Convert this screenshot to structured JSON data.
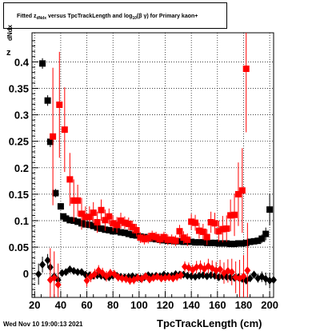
{
  "chart_data": {
    "type": "scatter",
    "title": "Fitted z_dNdx versus TpcTrackLength and log10(βγ) for Primary kaon+",
    "title_parts": {
      "lead": "Fitted  z",
      "lead_sub": "dNdx",
      "mid": "  versus TpcTrackLength and log",
      "log_sub": "10",
      "tail": "(β γ) for Primary kaon+"
    },
    "xlabel": "TpcTrackLength (cm)",
    "ylabel": "z",
    "ylabel_sub": "dNdx",
    "xlim": [
      18,
      203
    ],
    "ylim": [
      -0.045,
      0.455
    ],
    "xticks": [
      20,
      40,
      60,
      80,
      100,
      120,
      140,
      160,
      180,
      200
    ],
    "yticks": [
      0,
      0.05,
      0.1,
      0.15,
      0.2,
      0.25,
      0.3,
      0.35,
      0.4
    ],
    "ytick_labels": [
      "0",
      "0.05",
      "0.1",
      "0.15",
      "0.2",
      "0.25",
      "0.3",
      "0.35",
      "0.4"
    ],
    "grid": true,
    "colors": {
      "black": "#000000",
      "red": "#ff0000"
    },
    "series": [
      {
        "marker": "square",
        "color": "#000000",
        "x": [
          26,
          30,
          32,
          36,
          40,
          42,
          44,
          47,
          50,
          53,
          56,
          59,
          62,
          65,
          68,
          71,
          74,
          77,
          80,
          83,
          86,
          89,
          92,
          95,
          98,
          101,
          104,
          107,
          110,
          113,
          116,
          119,
          122,
          125,
          128,
          131,
          134,
          137,
          140,
          143,
          146,
          149,
          152,
          155,
          158,
          161,
          164,
          167,
          170,
          173,
          176,
          179,
          182,
          185,
          188,
          191,
          194,
          197,
          200
        ],
        "y": [
          0.397,
          0.327,
          0.249,
          0.152,
          0.127,
          0.108,
          0.104,
          0.101,
          0.1,
          0.098,
          0.095,
          0.093,
          0.092,
          0.09,
          0.087,
          0.085,
          0.083,
          0.082,
          0.08,
          0.08,
          0.078,
          0.077,
          0.075,
          0.073,
          0.072,
          0.07,
          0.069,
          0.067,
          0.066,
          0.065,
          0.064,
          0.063,
          0.062,
          0.062,
          0.061,
          0.061,
          0.06,
          0.06,
          0.06,
          0.059,
          0.059,
          0.059,
          0.058,
          0.058,
          0.058,
          0.057,
          0.057,
          0.057,
          0.056,
          0.056,
          0.057,
          0.057,
          0.058,
          0.06,
          0.061,
          0.062,
          0.066,
          0.075,
          0.121
        ],
        "err": [
          0.01,
          0.01,
          0.01,
          0.008,
          0.006,
          0.005,
          0.004,
          0.004,
          0.004,
          0.004,
          0.003,
          0.003,
          0.003,
          0.003,
          0.003,
          0.003,
          0.003,
          0.003,
          0.003,
          0.003,
          0.003,
          0.003,
          0.003,
          0.003,
          0.003,
          0.003,
          0.003,
          0.003,
          0.003,
          0.003,
          0.003,
          0.003,
          0.003,
          0.003,
          0.003,
          0.003,
          0.003,
          0.003,
          0.003,
          0.003,
          0.003,
          0.003,
          0.003,
          0.003,
          0.003,
          0.003,
          0.003,
          0.003,
          0.003,
          0.003,
          0.003,
          0.003,
          0.004,
          0.004,
          0.005,
          0.006,
          0.008,
          0.012,
          0.03
        ]
      },
      {
        "marker": "square",
        "color": "#ff0000",
        "x": [
          34,
          39,
          43,
          47,
          50,
          53,
          56,
          59,
          62,
          65,
          68,
          71,
          74,
          77,
          80,
          83,
          86,
          89,
          92,
          95,
          98,
          101,
          104,
          107,
          110,
          113,
          116,
          119,
          122,
          125,
          128,
          131,
          134,
          137,
          140,
          143,
          146,
          149,
          152,
          155,
          158,
          161,
          164,
          167,
          170,
          173,
          176,
          179,
          182
        ],
        "y": [
          0.259,
          0.319,
          0.272,
          0.178,
          0.138,
          0.138,
          0.113,
          0.107,
          0.107,
          0.115,
          0.097,
          0.12,
          0.101,
          0.108,
          0.095,
          0.092,
          0.1,
          0.096,
          0.094,
          0.088,
          0.082,
          0.068,
          0.065,
          0.067,
          0.071,
          0.069,
          0.065,
          0.069,
          0.064,
          0.064,
          0.062,
          0.08,
          0.068,
          0.064,
          0.098,
          0.096,
          0.081,
          0.079,
          0.069,
          0.097,
          0.095,
          0.08,
          0.084,
          0.085,
          0.11,
          0.111,
          0.15,
          0.157,
          0.387
        ],
        "err": [
          0.13,
          0.1,
          0.08,
          0.05,
          0.04,
          0.03,
          0.03,
          0.02,
          0.02,
          0.02,
          0.02,
          0.02,
          0.02,
          0.015,
          0.015,
          0.015,
          0.015,
          0.012,
          0.012,
          0.012,
          0.012,
          0.01,
          0.01,
          0.01,
          0.01,
          0.01,
          0.01,
          0.01,
          0.01,
          0.01,
          0.01,
          0.012,
          0.012,
          0.012,
          0.015,
          0.015,
          0.015,
          0.015,
          0.015,
          0.02,
          0.02,
          0.02,
          0.025,
          0.025,
          0.03,
          0.04,
          0.06,
          0.08,
          0.12
        ]
      },
      {
        "marker": "diamond",
        "color": "#000000",
        "x": [
          23,
          26,
          30,
          32,
          35,
          38,
          41,
          44,
          47,
          50,
          53,
          56,
          59,
          62,
          65,
          68,
          71,
          74,
          77,
          80,
          83,
          86,
          89,
          92,
          95,
          98,
          101,
          104,
          107,
          110,
          113,
          116,
          119,
          122,
          125,
          128,
          131,
          134,
          137,
          140,
          143,
          146,
          149,
          152,
          155,
          158,
          161,
          164,
          167,
          170,
          173,
          176,
          179,
          182,
          185,
          188,
          191,
          194,
          197,
          200,
          203
        ],
        "y": [
          -0.001,
          0.017,
          0.025,
          0.012,
          -0.005,
          -0.012,
          0.001,
          0.003,
          0.008,
          0.005,
          0.003,
          0.003,
          -0.002,
          -0.003,
          -0.004,
          -0.003,
          -0.004,
          -0.006,
          -0.007,
          -0.004,
          -0.004,
          -0.006,
          -0.007,
          -0.006,
          -0.005,
          -0.007,
          -0.009,
          -0.007,
          -0.003,
          -0.005,
          -0.004,
          -0.005,
          -0.002,
          -0.004,
          -0.004,
          -0.001,
          -0.002,
          -0.002,
          -0.004,
          -0.005,
          -0.006,
          -0.004,
          -0.003,
          -0.005,
          -0.003,
          -0.004,
          -0.007,
          -0.005,
          -0.006,
          -0.007,
          -0.008,
          -0.007,
          -0.01,
          -0.013,
          -0.009,
          -0.002,
          -0.009,
          -0.006,
          -0.01,
          -0.013,
          -0.012
        ],
        "err": [
          0.02,
          0.015,
          0.012,
          0.01,
          0.008,
          0.006,
          0.005,
          0.004,
          0.004,
          0.003,
          0.003,
          0.003,
          0.003,
          0.003,
          0.003,
          0.003,
          0.003,
          0.003,
          0.003,
          0.003,
          0.003,
          0.003,
          0.003,
          0.003,
          0.003,
          0.003,
          0.003,
          0.003,
          0.003,
          0.003,
          0.003,
          0.003,
          0.003,
          0.003,
          0.003,
          0.003,
          0.003,
          0.003,
          0.003,
          0.003,
          0.003,
          0.003,
          0.003,
          0.003,
          0.003,
          0.003,
          0.003,
          0.003,
          0.003,
          0.003,
          0.003,
          0.004,
          0.004,
          0.005,
          0.006,
          0.007,
          0.008,
          0.01,
          0.012,
          0.015,
          0.02
        ]
      },
      {
        "marker": "diamond",
        "color": "#ff0000",
        "x": [
          32,
          35,
          38,
          60,
          63,
          66,
          69,
          72,
          75,
          78,
          81,
          84,
          87,
          90,
          93,
          96,
          99,
          102,
          105,
          108,
          111,
          114,
          117,
          120,
          123,
          126,
          129,
          132,
          135,
          138,
          141,
          144,
          147,
          150,
          153,
          156,
          159,
          162,
          165,
          168,
          171,
          174,
          177,
          180,
          183
        ],
        "y": [
          -0.012,
          -0.008,
          -0.021,
          -0.013,
          -0.006,
          -0.001,
          0.006,
          0.001,
          -0.005,
          0.001,
          -0.001,
          -0.007,
          -0.009,
          -0.01,
          -0.013,
          -0.012,
          -0.008,
          -0.01,
          -0.005,
          -0.011,
          -0.008,
          -0.006,
          -0.009,
          -0.008,
          -0.007,
          -0.009,
          -0.006,
          -0.003,
          0.013,
          0.011,
          0.007,
          0.012,
          0.013,
          0.009,
          0.014,
          0.01,
          0.006,
          0.008,
          0.001,
          0.005,
          0.003,
          -0.007,
          -0.009,
          -0.005,
          0.006
        ],
        "err": [
          0.06,
          0.05,
          0.04,
          0.012,
          0.01,
          0.01,
          0.01,
          0.01,
          0.01,
          0.008,
          0.008,
          0.008,
          0.008,
          0.008,
          0.008,
          0.008,
          0.008,
          0.008,
          0.007,
          0.007,
          0.007,
          0.007,
          0.007,
          0.007,
          0.007,
          0.007,
          0.008,
          0.008,
          0.01,
          0.01,
          0.01,
          0.012,
          0.012,
          0.012,
          0.014,
          0.015,
          0.016,
          0.018,
          0.02,
          0.022,
          0.025,
          0.03,
          0.035,
          0.04,
          0.09
        ]
      }
    ]
  },
  "stamp": "Wed Nov 10 19:00:13 2021"
}
